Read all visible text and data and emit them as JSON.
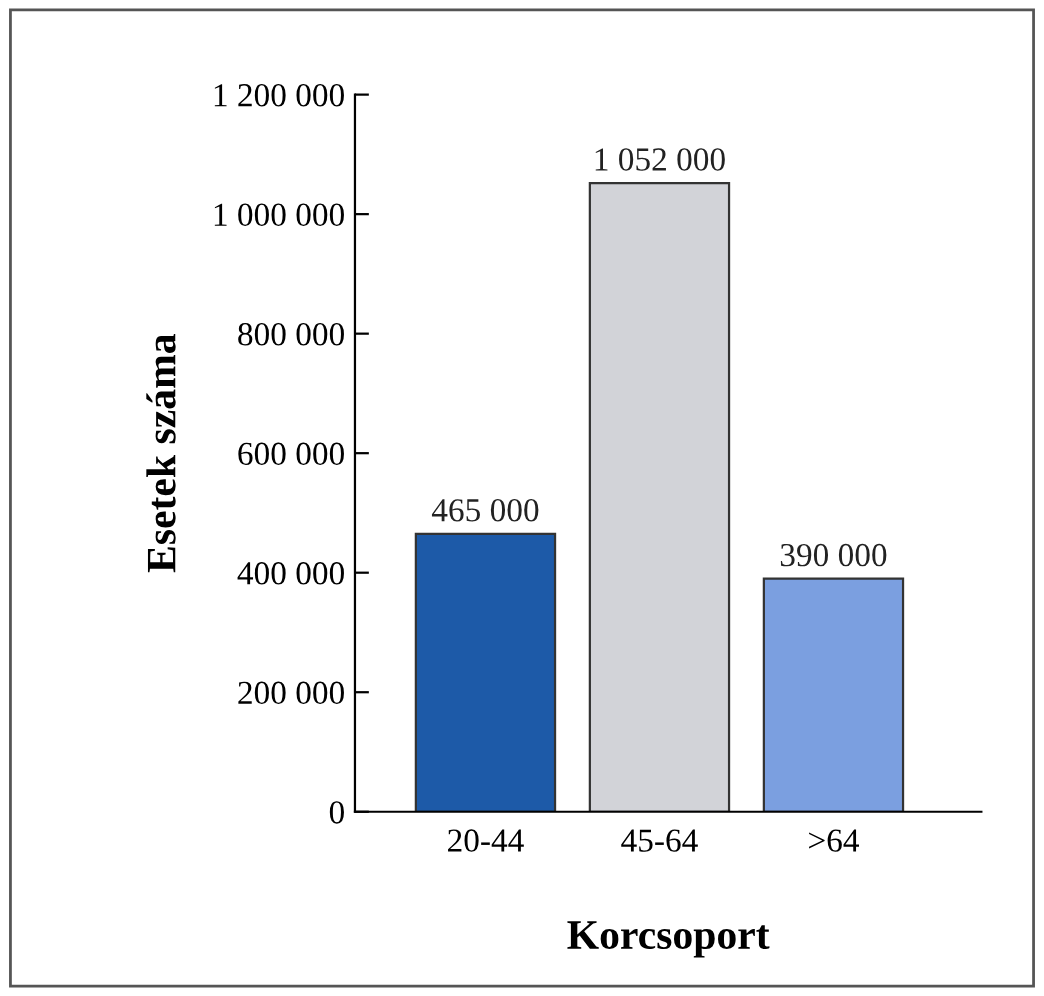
{
  "chart_data": {
    "type": "bar",
    "xlabel": "Korcsoport",
    "ylabel": "Esetek száma",
    "categories": [
      "20-44",
      "45-64",
      ">64"
    ],
    "values": [
      465000,
      1052000,
      390000
    ],
    "colors": [
      "#1d5aa8",
      "#d2d3d8",
      "#7b9fe0"
    ],
    "value_labels": [
      "465 000",
      "1 052 000",
      "390 000"
    ],
    "ylim": [
      0,
      1200000
    ],
    "yticks": [
      {
        "value": 0,
        "label": "0"
      },
      {
        "value": 200000,
        "label": "200 000"
      },
      {
        "value": 400000,
        "label": "400 000"
      },
      {
        "value": 600000,
        "label": "600 000"
      },
      {
        "value": 800000,
        "label": "800 000"
      },
      {
        "value": 1000000,
        "label": "1 000 000"
      },
      {
        "value": 1200000,
        "label": "1 200 000"
      }
    ],
    "grid": false,
    "legend": false
  }
}
